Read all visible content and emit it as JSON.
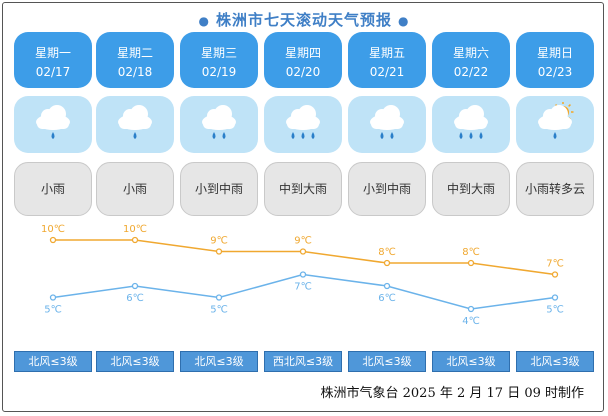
{
  "title": "株洲市七天滚动天气预报",
  "title_dots": [
    "●",
    "●"
  ],
  "days": [
    {
      "week": "星期一",
      "date": "02/17",
      "weather": "小雨",
      "icon": "light-rain-icon",
      "rain_drops": 1,
      "high": "10℃",
      "low": "5℃",
      "high_value": 10,
      "low_value": 5,
      "wind": "北风≤3级"
    },
    {
      "week": "星期二",
      "date": "02/18",
      "weather": "小雨",
      "icon": "light-rain-icon",
      "rain_drops": 1,
      "high": "10℃",
      "low": "6℃",
      "high_value": 10,
      "low_value": 6,
      "wind": "北风≤3级"
    },
    {
      "week": "星期三",
      "date": "02/19",
      "weather": "小到中雨",
      "icon": "moderate-rain-icon",
      "rain_drops": 2,
      "high": "9℃",
      "low": "5℃",
      "high_value": 9,
      "low_value": 5,
      "wind": "北风≤3级"
    },
    {
      "week": "星期四",
      "date": "02/20",
      "weather": "中到大雨",
      "icon": "heavy-rain-icon",
      "rain_drops": 3,
      "high": "9℃",
      "low": "7℃",
      "high_value": 9,
      "low_value": 7,
      "wind": "西北风≤3级"
    },
    {
      "week": "星期五",
      "date": "02/21",
      "weather": "小到中雨",
      "icon": "moderate-rain-icon",
      "rain_drops": 2,
      "high": "8℃",
      "low": "6℃",
      "high_value": 8,
      "low_value": 6,
      "wind": "北风≤3级"
    },
    {
      "week": "星期六",
      "date": "02/22",
      "weather": "中到大雨",
      "icon": "heavy-rain-icon",
      "rain_drops": 3,
      "high": "8℃",
      "low": "4℃",
      "high_value": 8,
      "low_value": 4,
      "wind": "北风≤3级"
    },
    {
      "week": "星期日",
      "date": "02/23",
      "weather": "小雨转多云",
      "icon": "rain-to-cloudy-icon",
      "rain_drops": 1,
      "high": "7℃",
      "low": "5℃",
      "high_value": 7,
      "low_value": 5,
      "wind": "北风≤3级"
    }
  ],
  "footer": "株洲市气象台 2025 年 2 月 17 日 09 时制作",
  "colors": {
    "title": "#3f7fc6",
    "day_box": "#3d9de8",
    "icon_box": "#bfe3f7",
    "desc_box": "#e6e6e6",
    "wind_box": "#4f97d9",
    "high_line": "#f0a830",
    "low_line": "#6bb3ea",
    "cloud": "#ffffff",
    "rain": "#2a7fc9",
    "sun": "#f5a623"
  }
}
